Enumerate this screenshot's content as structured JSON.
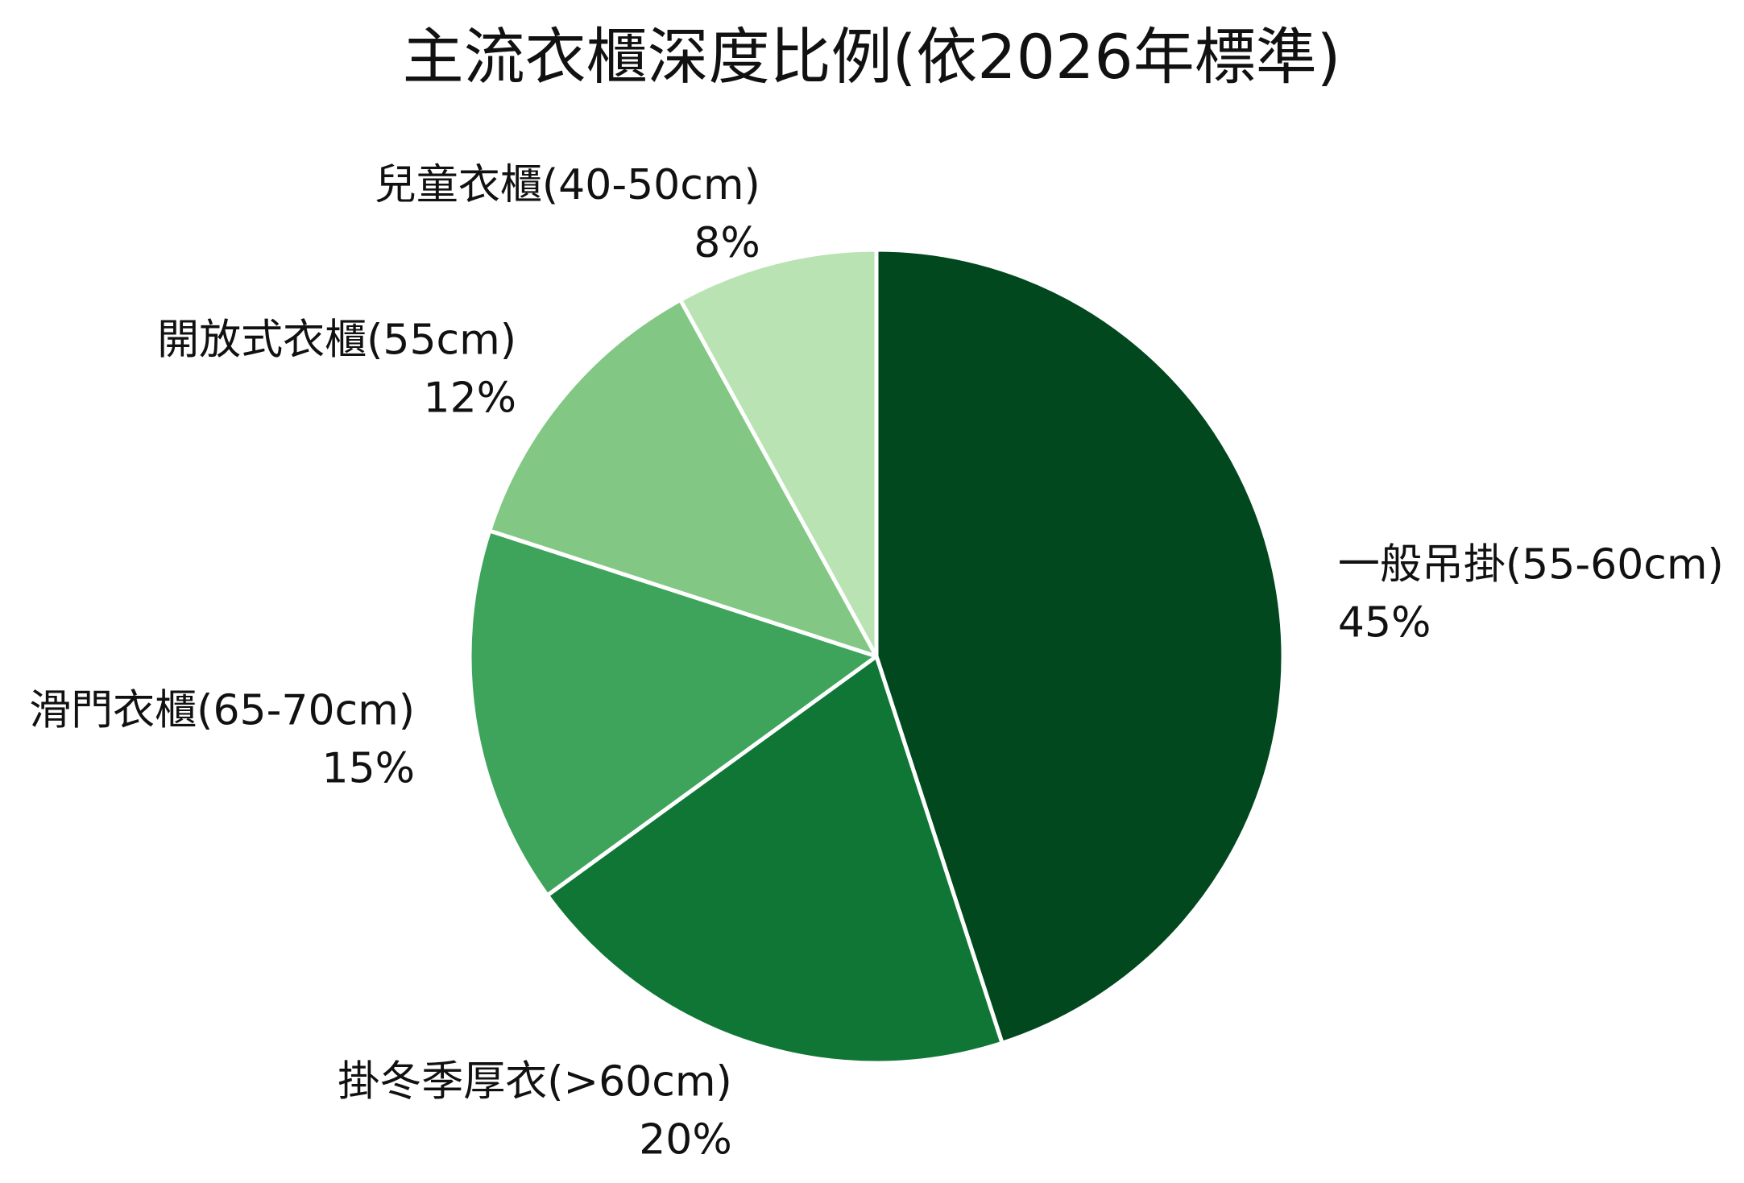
{
  "chart_data": {
    "type": "pie",
    "title": "主流衣櫃深度比例(依2026年標準)",
    "start_angle_deg": 90,
    "direction": "clockwise",
    "legend": "none",
    "slices": [
      {
        "label": "一般吊掛(55-60cm)",
        "value": 45,
        "percent_label": "45%",
        "color": "#02481f"
      },
      {
        "label": "掛冬季厚衣(>60cm)",
        "value": 20,
        "percent_label": "20%",
        "color": "#107636"
      },
      {
        "label": "滑門衣櫃(65-70cm)",
        "value": 15,
        "percent_label": "15%",
        "color": "#3fa45b"
      },
      {
        "label": "開放式衣櫃(55cm)",
        "value": 12,
        "percent_label": "12%",
        "color": "#82c884"
      },
      {
        "label": "兒童衣櫃(40-50cm)",
        "value": 8,
        "percent_label": "8%",
        "color": "#b9e3b3"
      }
    ]
  }
}
